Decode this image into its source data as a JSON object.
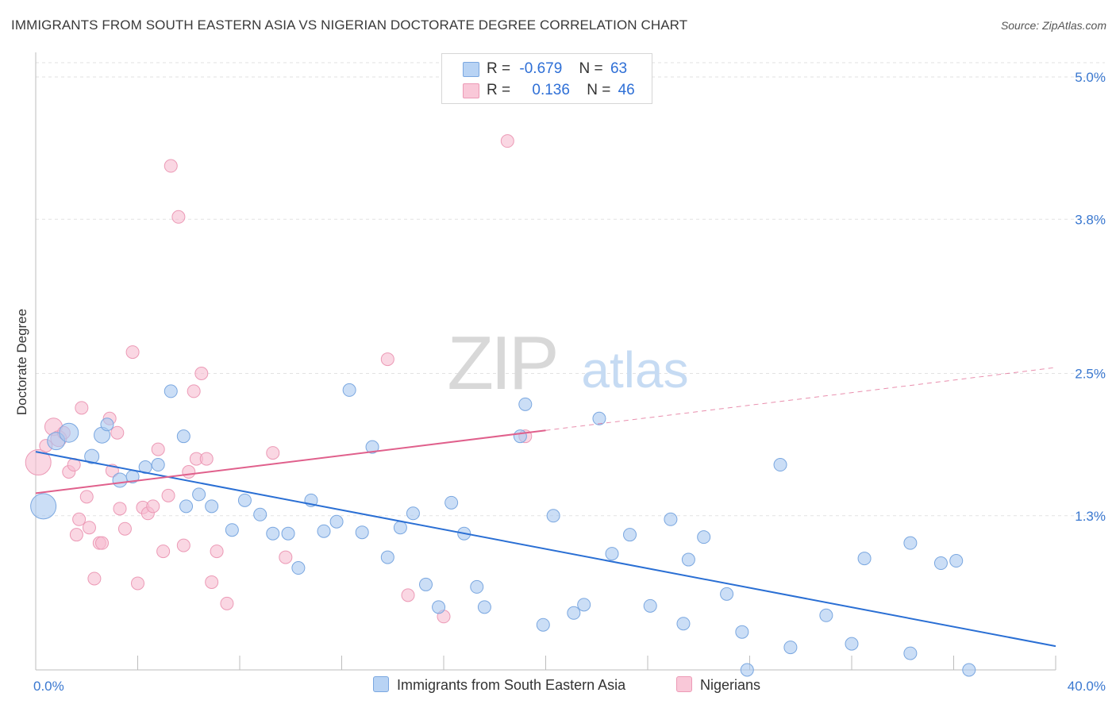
{
  "title": "IMMIGRANTS FROM SOUTH EASTERN ASIA VS NIGERIAN DOCTORATE DEGREE CORRELATION CHART",
  "source": "Source: ZipAtlas.com",
  "watermark": {
    "zip": "ZIP",
    "atlas": "atlas"
  },
  "legend": {
    "row1": {
      "r_label": "R =",
      "r_value": "-0.679",
      "n_label": "N =",
      "n_value": "63"
    },
    "row2": {
      "r_label": "R =",
      "r_value": "0.136",
      "n_label": "N =",
      "n_value": "46"
    }
  },
  "colors": {
    "blue_fill": "#a9c8f0",
    "blue_stroke": "#7aa7e0",
    "blue_line": "#2a6fd4",
    "pink_fill": "#f7bcd0",
    "pink_stroke": "#ec9ab6",
    "pink_line": "#e0608c",
    "tick_label": "#3a78d0"
  },
  "chart_data": {
    "type": "scatter",
    "title": "IMMIGRANTS FROM SOUTH EASTERN ASIA VS NIGERIAN DOCTORATE DEGREE CORRELATION CHART",
    "xlabel": "",
    "ylabel": "Doctorate Degree",
    "xlim": [
      0,
      40
    ],
    "ylim": [
      0,
      5.0
    ],
    "x_tick_labels": [
      "0.0%",
      "40.0%"
    ],
    "y_ticks": [
      1.3,
      2.5,
      3.8,
      5.0
    ],
    "y_tick_labels": [
      "1.3%",
      "2.5%",
      "3.8%",
      "5.0%"
    ],
    "grid": "horizontal dashed",
    "legend_placement": "bottom",
    "series": [
      {
        "name": "Immigrants from South Eastern Asia",
        "color": "#a9c8f0",
        "r": -0.679,
        "n": 63,
        "trend": {
          "x0": 0,
          "y0": 1.84,
          "x1": 40,
          "y1": 0.2,
          "dashed_from": null
        },
        "points": [
          [
            0.3,
            1.38,
            16
          ],
          [
            0.8,
            1.93,
            11
          ],
          [
            1.3,
            2.0,
            12
          ],
          [
            2.6,
            1.98,
            10
          ],
          [
            2.2,
            1.8,
            9
          ],
          [
            2.8,
            2.07,
            8
          ],
          [
            3.3,
            1.6,
            9
          ],
          [
            3.8,
            1.63,
            8
          ],
          [
            4.3,
            1.71,
            8
          ],
          [
            4.8,
            1.73,
            8
          ],
          [
            5.3,
            2.35,
            8
          ],
          [
            5.8,
            1.97,
            8
          ],
          [
            5.9,
            1.38,
            8
          ],
          [
            6.4,
            1.48,
            8
          ],
          [
            6.9,
            1.38,
            8
          ],
          [
            7.7,
            1.18,
            8
          ],
          [
            8.2,
            1.43,
            8
          ],
          [
            8.8,
            1.31,
            8
          ],
          [
            9.3,
            1.15,
            8
          ],
          [
            9.9,
            1.15,
            8
          ],
          [
            10.3,
            0.86,
            8
          ],
          [
            10.8,
            1.43,
            8
          ],
          [
            11.3,
            1.17,
            8
          ],
          [
            11.8,
            1.25,
            8
          ],
          [
            12.3,
            2.36,
            8
          ],
          [
            12.8,
            1.16,
            8
          ],
          [
            13.2,
            1.88,
            8
          ],
          [
            13.8,
            0.95,
            8
          ],
          [
            14.3,
            1.2,
            8
          ],
          [
            14.8,
            1.32,
            8
          ],
          [
            15.3,
            0.72,
            8
          ],
          [
            15.8,
            0.53,
            8
          ],
          [
            16.3,
            1.41,
            8
          ],
          [
            16.8,
            1.15,
            8
          ],
          [
            17.3,
            0.7,
            8
          ],
          [
            17.6,
            0.53,
            8
          ],
          [
            19.0,
            1.97,
            8
          ],
          [
            19.2,
            2.24,
            8
          ],
          [
            19.9,
            0.38,
            8
          ],
          [
            20.3,
            1.3,
            8
          ],
          [
            21.1,
            0.48,
            8
          ],
          [
            21.5,
            0.55,
            8
          ],
          [
            22.1,
            2.12,
            8
          ],
          [
            22.6,
            0.98,
            8
          ],
          [
            23.3,
            1.14,
            8
          ],
          [
            24.1,
            0.54,
            8
          ],
          [
            24.9,
            1.27,
            8
          ],
          [
            25.6,
            0.93,
            8
          ],
          [
            25.4,
            0.39,
            8
          ],
          [
            26.2,
            1.12,
            8
          ],
          [
            27.1,
            0.64,
            8
          ],
          [
            27.7,
            0.32,
            8
          ],
          [
            27.9,
            0.0,
            8
          ],
          [
            29.2,
            1.73,
            8
          ],
          [
            29.6,
            0.19,
            8
          ],
          [
            31.0,
            0.46,
            8
          ],
          [
            32.0,
            0.22,
            8
          ],
          [
            32.5,
            0.94,
            8
          ],
          [
            34.3,
            1.07,
            8
          ],
          [
            34.3,
            0.14,
            8
          ],
          [
            35.5,
            0.9,
            8
          ],
          [
            36.1,
            0.92,
            8
          ],
          [
            36.6,
            0.0,
            8
          ]
        ]
      },
      {
        "name": "Nigerians",
        "color": "#f7bcd0",
        "r": 0.136,
        "n": 46,
        "trend": {
          "x0": 0,
          "y0": 1.49,
          "x1": 40,
          "y1": 2.55,
          "dashed_from": 20
        }
      }
    ],
    "pink_points": [
      [
        0.1,
        1.75,
        16
      ],
      [
        0.7,
        2.05,
        11
      ],
      [
        0.9,
        1.95,
        10
      ],
      [
        1.1,
        2.0,
        8
      ],
      [
        1.3,
        1.67,
        8
      ],
      [
        1.5,
        1.73,
        8
      ],
      [
        1.7,
        1.27,
        8
      ],
      [
        1.6,
        1.14,
        8
      ],
      [
        2.0,
        1.46,
        8
      ],
      [
        2.1,
        1.2,
        8
      ],
      [
        2.3,
        0.77,
        8
      ],
      [
        2.5,
        1.07,
        8
      ],
      [
        2.6,
        1.07,
        8
      ],
      [
        2.9,
        2.12,
        8
      ],
      [
        3.0,
        1.68,
        8
      ],
      [
        3.2,
        2.0,
        8
      ],
      [
        3.3,
        1.36,
        8
      ],
      [
        3.5,
        1.19,
        8
      ],
      [
        3.8,
        2.68,
        8
      ],
      [
        4.0,
        0.73,
        8
      ],
      [
        4.2,
        1.37,
        8
      ],
      [
        4.4,
        1.32,
        8
      ],
      [
        4.6,
        1.38,
        8
      ],
      [
        4.8,
        1.86,
        8
      ],
      [
        5.0,
        1.0,
        8
      ],
      [
        5.2,
        1.47,
        8
      ],
      [
        5.6,
        3.82,
        8
      ],
      [
        5.3,
        4.25,
        8
      ],
      [
        5.8,
        1.05,
        8
      ],
      [
        6.0,
        1.67,
        8
      ],
      [
        6.2,
        2.35,
        8
      ],
      [
        6.3,
        1.78,
        8
      ],
      [
        6.5,
        2.5,
        8
      ],
      [
        6.7,
        1.78,
        8
      ],
      [
        6.9,
        0.74,
        8
      ],
      [
        7.1,
        1.0,
        8
      ],
      [
        7.5,
        0.56,
        8
      ],
      [
        9.3,
        1.83,
        8
      ],
      [
        9.8,
        0.95,
        8
      ],
      [
        13.8,
        2.62,
        8
      ],
      [
        14.6,
        0.63,
        8
      ],
      [
        16.0,
        0.45,
        8
      ],
      [
        18.5,
        4.46,
        8
      ],
      [
        19.2,
        1.97,
        8
      ],
      [
        1.8,
        2.21,
        8
      ],
      [
        0.4,
        1.89,
        8
      ]
    ]
  },
  "bottom_legend": {
    "blue_label": "Immigrants from South Eastern Asia",
    "pink_label": "Nigerians"
  }
}
